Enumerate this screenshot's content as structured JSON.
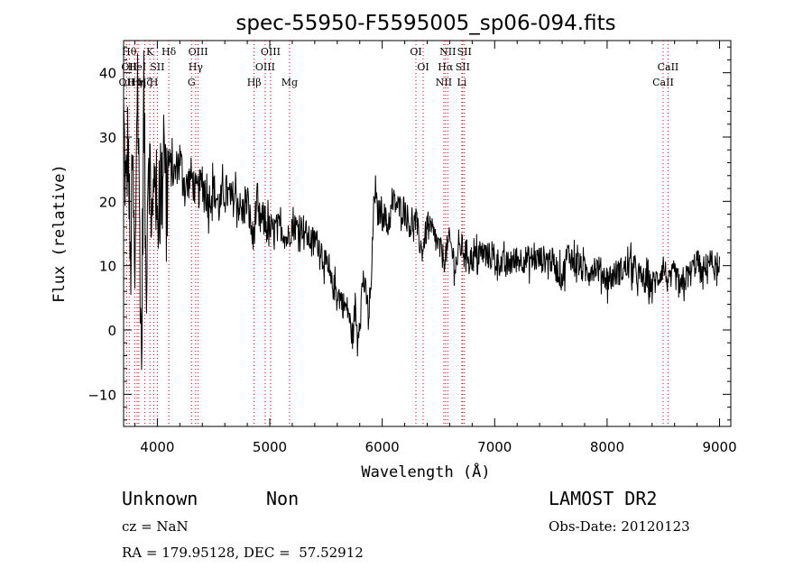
{
  "chart_data": {
    "type": "line",
    "title": "spec-55950-F5595005_sp06-094.fits",
    "xlabel": "Wavelength (Å)",
    "ylabel": "Flux (relative)",
    "xlim": [
      3700,
      9100
    ],
    "ylim": [
      -15,
      45
    ],
    "xticks": [
      4000,
      5000,
      6000,
      7000,
      8000,
      9000
    ],
    "yticks": [
      -10,
      0,
      10,
      20,
      30,
      40
    ],
    "grid": false,
    "series": [
      {
        "x": [
          3700,
          3720,
          3740,
          3760,
          3780,
          3800,
          3820,
          3840,
          3860,
          3880,
          3900,
          3920,
          3940,
          3960,
          3980,
          4000,
          4020,
          4040,
          4060,
          4080,
          4100,
          4150,
          4200,
          4250,
          4300,
          4350,
          4400,
          4450,
          4500,
          4550,
          4600,
          4650,
          4700,
          4750,
          4800,
          4850,
          4880,
          4900,
          4950,
          5000,
          5050,
          5100,
          5150,
          5200,
          5250,
          5300,
          5350,
          5400,
          5450,
          5500,
          5550,
          5600,
          5650,
          5700,
          5720,
          5740,
          5760,
          5780,
          5800,
          5830,
          5860,
          5880,
          5900,
          5930,
          5960,
          6000,
          6050,
          6100,
          6150,
          6200,
          6250,
          6300,
          6350,
          6400,
          6450,
          6500,
          6550,
          6600,
          6650,
          6700,
          6750,
          6800,
          6900,
          7000,
          7100,
          7200,
          7300,
          7400,
          7500,
          7600,
          7650,
          7700,
          7800,
          7900,
          8000,
          8100,
          8200,
          8300,
          8400,
          8450,
          8500,
          8550,
          8600,
          8650,
          8700,
          8750,
          8800,
          8850,
          8900,
          8950,
          9000
        ],
        "y": [
          33,
          20,
          30,
          8,
          26,
          3,
          42,
          20,
          -6,
          38,
          5,
          30,
          22,
          15,
          28,
          14,
          27,
          20,
          35,
          18,
          26,
          24,
          27,
          22,
          24,
          21,
          23,
          20,
          22,
          19,
          22,
          20,
          21,
          18,
          20,
          14,
          19,
          17,
          17,
          15,
          16,
          16,
          14,
          16,
          16,
          16,
          14,
          14,
          13,
          10,
          7,
          6,
          4,
          3,
          0,
          -1,
          4,
          -1,
          2,
          8,
          5,
          2,
          6,
          22,
          18,
          19,
          16,
          20,
          19,
          19,
          16,
          17,
          12,
          16,
          15,
          13,
          11,
          14,
          10,
          13,
          12,
          11,
          12,
          11,
          10,
          11,
          11,
          11,
          11,
          8,
          12,
          11,
          9,
          10,
          8,
          9,
          10,
          8,
          7,
          8,
          10,
          7,
          9,
          6,
          8,
          9,
          11,
          8,
          11,
          10,
          8
        ]
      }
    ],
    "lines": [
      {
        "x": 3727,
        "labels": [
          {
            "t": "OII",
            "row": 2
          }
        ]
      },
      {
        "x": 3750,
        "labels": [
          {
            "t": "Hθ",
            "row": 0
          },
          {
            "t": "OII",
            "row": 1
          }
        ]
      },
      {
        "x": 3798,
        "labels": [
          {
            "t": "Hη",
            "row": 2
          }
        ]
      },
      {
        "x": 3820,
        "labels": [
          {
            "t": "HeI",
            "row": 1
          }
        ]
      },
      {
        "x": 3835,
        "labels": [
          {
            "t": "Hη",
            "row": 2
          }
        ]
      },
      {
        "x": 3889,
        "labels": [
          {
            "t": "Hζ",
            "row": 2
          }
        ]
      },
      {
        "x": 3934,
        "labels": [
          {
            "t": "K",
            "row": 0
          }
        ]
      },
      {
        "x": 3969,
        "labels": [
          {
            "t": "H",
            "row": 2
          }
        ]
      },
      {
        "x": 4000,
        "labels": [
          {
            "t": "SII",
            "row": 1
          }
        ]
      },
      {
        "x": 4102,
        "labels": [
          {
            "t": "Hδ",
            "row": 0
          }
        ]
      },
      {
        "x": 4304,
        "labels": [
          {
            "t": "G",
            "row": 2
          }
        ]
      },
      {
        "x": 4341,
        "labels": [
          {
            "t": "Hγ",
            "row": 1
          }
        ]
      },
      {
        "x": 4363,
        "labels": [
          {
            "t": "OIII",
            "row": 0
          }
        ]
      },
      {
        "x": 4861,
        "labels": [
          {
            "t": "Hβ",
            "row": 2
          }
        ]
      },
      {
        "x": 4959,
        "labels": [
          {
            "t": "OIII",
            "row": 1
          }
        ]
      },
      {
        "x": 5007,
        "labels": [
          {
            "t": "OIII",
            "row": 0
          }
        ]
      },
      {
        "x": 5176,
        "labels": [
          {
            "t": "Mg",
            "row": 2
          }
        ]
      },
      {
        "x": 6300,
        "labels": [
          {
            "t": "OI",
            "row": 0
          }
        ]
      },
      {
        "x": 6364,
        "labels": [
          {
            "t": "OI",
            "row": 1
          }
        ]
      },
      {
        "x": 6548,
        "labels": [
          {
            "t": "NII",
            "row": 2
          }
        ]
      },
      {
        "x": 6563,
        "labels": [
          {
            "t": "Hα",
            "row": 1
          }
        ]
      },
      {
        "x": 6583,
        "labels": [
          {
            "t": "NII",
            "row": 0
          }
        ]
      },
      {
        "x": 6708,
        "labels": [
          {
            "t": "Li",
            "row": 2
          }
        ]
      },
      {
        "x": 6716,
        "labels": [
          {
            "t": "SII",
            "row": 1
          }
        ]
      },
      {
        "x": 6731,
        "labels": [
          {
            "t": "SII",
            "row": 0
          }
        ]
      },
      {
        "x": 8498,
        "labels": [
          {
            "t": "CaII",
            "row": 2
          }
        ]
      },
      {
        "x": 8542,
        "labels": [
          {
            "t": "CaII",
            "row": 1
          }
        ]
      }
    ],
    "line_color": "#cc0000"
  },
  "info": {
    "class": "Unknown",
    "subclass": "Non",
    "survey": "LAMOST DR2",
    "cz": "cz = NaN",
    "obs_date": "Obs-Date: 20120123",
    "coords": "RA = 179.95128, DEC =  57.52912"
  }
}
